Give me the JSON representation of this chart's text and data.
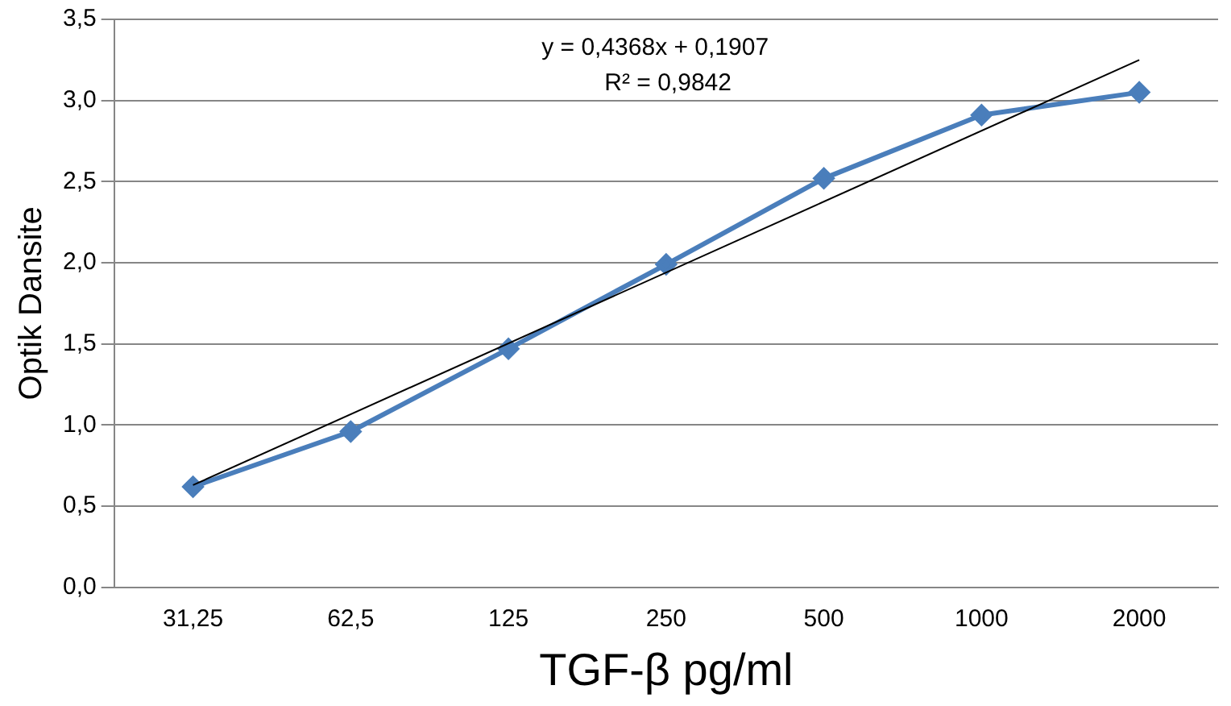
{
  "chart_data": {
    "type": "line",
    "xlabel": "TGF-β pg/ml",
    "ylabel": "Optik Dansite",
    "categories": [
      "31,25",
      "62,5",
      "125",
      "250",
      "500",
      "1000",
      "2000"
    ],
    "series": [
      {
        "color": "#4a7ebb",
        "values": [
          0.62,
          0.96,
          1.47,
          1.99,
          2.52,
          2.91,
          3.05
        ],
        "marker": "diamond"
      },
      {
        "type": "line",
        "color": "#000000",
        "values": [
          0.63,
          null,
          null,
          null,
          null,
          null,
          3.25
        ],
        "marker": "none"
      }
    ],
    "ylim": [
      0,
      3.5
    ],
    "yticks": [
      {
        "value": 0,
        "label": "0,0"
      },
      {
        "value": 0.5,
        "label": "0,5"
      },
      {
        "value": 1,
        "label": "1,0"
      },
      {
        "value": 1.5,
        "label": "1,5"
      },
      {
        "value": 2,
        "label": "2,0"
      },
      {
        "value": 2.5,
        "label": "2,5"
      },
      {
        "value": 3,
        "label": "3,0"
      },
      {
        "value": 3.5,
        "label": "3,5"
      }
    ],
    "grid": "y",
    "legend": false,
    "annotations": [
      "y = 0,4368x + 0,1907",
      "R² = 0,9842"
    ]
  }
}
